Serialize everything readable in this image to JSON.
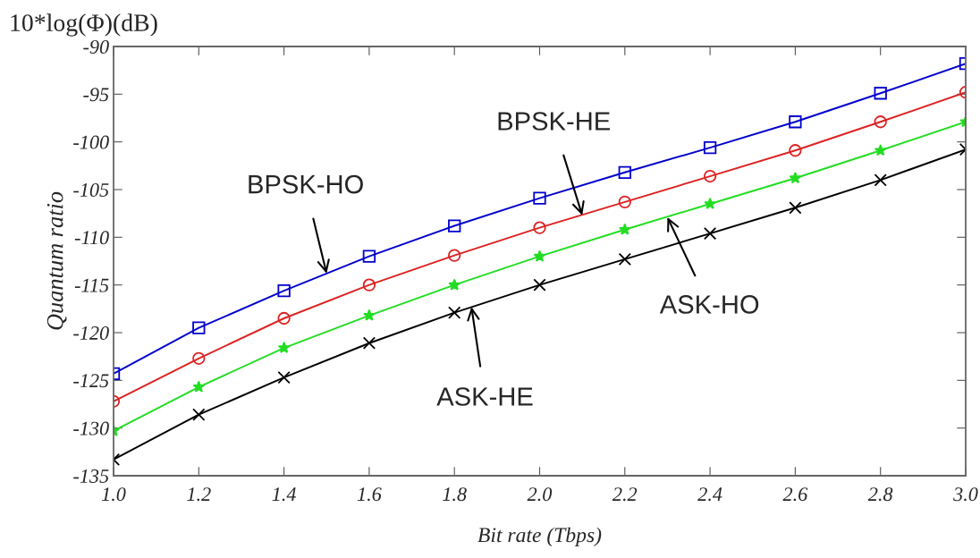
{
  "chart_data": {
    "type": "line",
    "title": "10*log(Φ)(dB)",
    "xlabel": "Bit rate (Tbps)",
    "ylabel": "Quantum ratio",
    "x": [
      1.0,
      1.2,
      1.4,
      1.6,
      1.8,
      2.0,
      2.2,
      2.4,
      2.6,
      2.8,
      3.0
    ],
    "series": [
      {
        "color": "#0000cc",
        "marker": "square",
        "values": [
          -124.3,
          -119.5,
          -115.6,
          -112.0,
          -108.8,
          -105.9,
          -103.2,
          -100.6,
          -97.9,
          -94.9,
          -91.8
        ]
      },
      {
        "color": "#dd2222",
        "marker": "circle",
        "values": [
          -127.2,
          -122.7,
          -118.5,
          -115.0,
          -111.9,
          -109.0,
          -106.3,
          -103.6,
          -100.9,
          -97.9,
          -94.8
        ]
      },
      {
        "color": "#22dd22",
        "marker": "star",
        "values": [
          -130.3,
          -125.7,
          -121.6,
          -118.2,
          -115.0,
          -112.0,
          -109.2,
          -106.5,
          -103.8,
          -100.9,
          -97.9
        ]
      },
      {
        "color": "#000000",
        "marker": "cross",
        "values": [
          -133.3,
          -128.6,
          -124.7,
          -121.1,
          -117.9,
          -115.0,
          -112.3,
          -109.6,
          -106.9,
          -104.0,
          -100.8
        ]
      }
    ],
    "annotations": [
      {
        "text": "BPSK-HO",
        "x": 1.5,
        "y": -113.8
      },
      {
        "text": "BPSK-HE",
        "x": 2.1,
        "y": -107.7
      },
      {
        "text": "ASK-HO",
        "x": 2.3,
        "y": -107.9
      },
      {
        "text": "ASK-HE",
        "x": 1.84,
        "y": -117.3
      }
    ],
    "xlim": [
      1.0,
      3.0
    ],
    "xticks": [
      {
        "value": 1.0,
        "label": "1.0"
      },
      {
        "value": 1.2,
        "label": "1.2"
      },
      {
        "value": 1.4,
        "label": "1.4"
      },
      {
        "value": 1.6,
        "label": "1.6"
      },
      {
        "value": 1.8,
        "label": "1.8"
      },
      {
        "value": 2.0,
        "label": "2.0"
      },
      {
        "value": 2.2,
        "label": "2.2"
      },
      {
        "value": 2.4,
        "label": "2.4"
      },
      {
        "value": 2.6,
        "label": "2.6"
      },
      {
        "value": 2.8,
        "label": "2.8"
      },
      {
        "value": 3.0,
        "label": "3.0"
      }
    ],
    "ylim": [
      -135,
      -90
    ],
    "yticks": [
      -135,
      -130,
      -125,
      -120,
      -115,
      -110,
      -105,
      -100,
      -95,
      -90
    ],
    "grid": false,
    "legend": false,
    "line_style": "solid"
  }
}
